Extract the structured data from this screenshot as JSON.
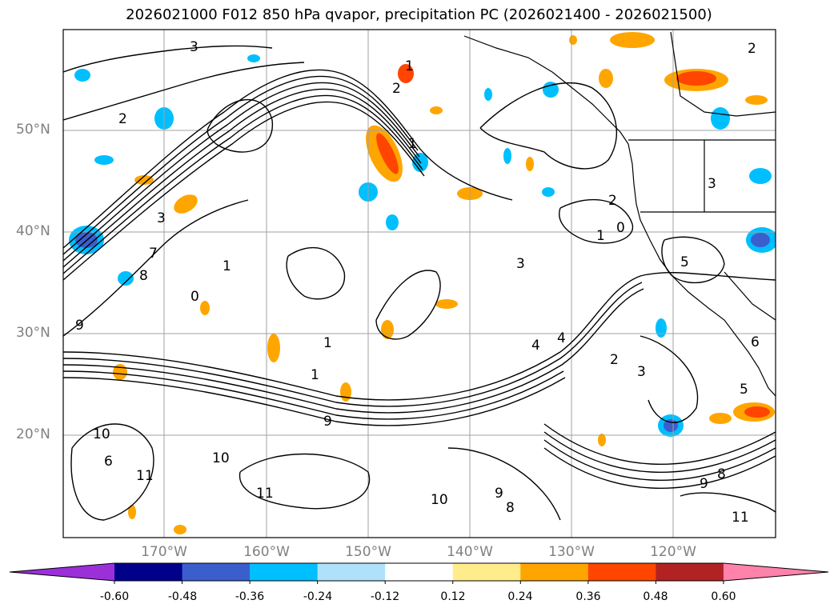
{
  "title": "2026021000 F012 850 hPa qvapor, precipitation PC (2026021400 - 2026021500)",
  "map": {
    "lat_labels": [
      "50°N",
      "40°N",
      "30°N",
      "20°N"
    ],
    "lon_labels": [
      "170°W",
      "160°W",
      "150°W",
      "140°W",
      "130°W",
      "120°W"
    ],
    "label_color": "#808080",
    "contour_color": "#000000"
  },
  "colorbar": {
    "ticks": [
      "-0.60",
      "-0.48",
      "-0.36",
      "-0.24",
      "-0.12",
      "0.12",
      "0.24",
      "0.36",
      "0.48",
      "0.60"
    ],
    "colors": [
      "#9b30d9",
      "#00008b",
      "#3a5fcd",
      "#00bfff",
      "#afe2fa",
      "#ffffff",
      "#ffec8b",
      "#ffa500",
      "#ff4500",
      "#b22222",
      "#ff82ab"
    ]
  },
  "contour_labels": [
    "3",
    "2",
    "1",
    "2",
    "1",
    "3",
    "1",
    "0",
    "1",
    "3",
    "2",
    "3",
    "4",
    "5",
    "6",
    "7",
    "8",
    "9",
    "10",
    "11",
    "10",
    "11",
    "10",
    "9",
    "8",
    "6",
    "2",
    "3",
    "5",
    "9",
    "8",
    "11",
    "0",
    "1",
    "4",
    "2",
    "1",
    "9"
  ]
}
